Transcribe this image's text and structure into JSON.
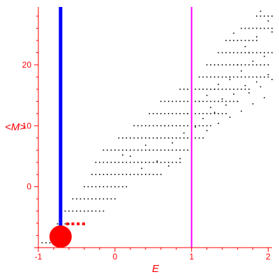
{
  "chart_data": {
    "type": "scatter",
    "title": "",
    "xlabel": "E",
    "ylabel": "<M>",
    "xlim": [
      -1,
      2.05
    ],
    "ylim": [
      -10,
      29.5
    ],
    "xticks": [
      "-1",
      "0",
      "1",
      "2"
    ],
    "yticks": [
      "0",
      "10",
      "20"
    ],
    "grid": false,
    "colors": {
      "axes": "#ff0000",
      "points": "#000000",
      "highlight": "#ff0000",
      "line_left": "#0000ff",
      "line_right": "#ff00ff"
    },
    "vertical_lines": [
      {
        "x": -0.71,
        "color": "#0000ff"
      },
      {
        "x": 1.0,
        "color": "#ff00ff"
      }
    ],
    "highlight_points": {
      "color": "#ff0000",
      "big": {
        "x": -0.71,
        "y": -8.2
      },
      "points": [
        [
          -0.62,
          -6.1
        ],
        [
          -0.55,
          -6.1
        ],
        [
          -0.48,
          -6.1
        ],
        [
          -0.41,
          -6.1
        ]
      ]
    },
    "point_bands": [
      {
        "y": -9.2,
        "x_start": -0.95,
        "x_end": -0.72
      },
      {
        "y": -6.1,
        "x_start": -0.75,
        "x_end": -0.55
      },
      {
        "y": -4.0,
        "x_start": -0.65,
        "x_end": -0.15
      },
      {
        "y": -2.0,
        "x_start": -0.55,
        "x_end": 0.0
      },
      {
        "y": 0.0,
        "x_start": -0.4,
        "x_end": 0.15
      },
      {
        "y": 2.0,
        "x_start": -0.3,
        "x_end": 0.25
      },
      {
        "y": 2.0,
        "x_start": 0.3,
        "x_end": 0.6
      },
      {
        "y": 4.0,
        "x_start": -0.25,
        "x_end": 0.35
      },
      {
        "y": 4.0,
        "x_start": 0.35,
        "x_end": 0.85
      },
      {
        "y": 6.0,
        "x_start": -0.15,
        "x_end": 0.45
      },
      {
        "y": 6.0,
        "x_start": 0.45,
        "x_end": 0.95
      },
      {
        "y": 8.0,
        "x_start": 0.05,
        "x_end": 0.55
      },
      {
        "y": 8.0,
        "x_start": 0.55,
        "x_end": 1.15
      },
      {
        "y": 10.0,
        "x_start": 0.25,
        "x_end": 0.65
      },
      {
        "y": 10.0,
        "x_start": 0.65,
        "x_end": 1.25
      },
      {
        "y": 12.0,
        "x_start": 0.45,
        "x_end": 0.95
      },
      {
        "y": 12.0,
        "x_start": 0.95,
        "x_end": 1.45
      },
      {
        "y": 14.0,
        "x_start": 0.6,
        "x_end": 1.1
      },
      {
        "y": 14.0,
        "x_start": 1.1,
        "x_end": 1.6
      },
      {
        "y": 16.0,
        "x_start": 0.85,
        "x_end": 1.3
      },
      {
        "y": 16.0,
        "x_start": 1.3,
        "x_end": 1.75
      },
      {
        "y": 18.0,
        "x_start": 1.1,
        "x_end": 1.5
      },
      {
        "y": 18.0,
        "x_start": 1.5,
        "x_end": 2.0
      },
      {
        "y": 20.0,
        "x_start": 1.2,
        "x_end": 1.6
      },
      {
        "y": 20.0,
        "x_start": 1.6,
        "x_end": 2.0
      },
      {
        "y": 22.0,
        "x_start": 1.35,
        "x_end": 1.75
      },
      {
        "y": 22.0,
        "x_start": 1.75,
        "x_end": 2.05
      },
      {
        "y": 24.0,
        "x_start": 1.45,
        "x_end": 1.85
      },
      {
        "y": 26.0,
        "x_start": 1.65,
        "x_end": 2.05
      },
      {
        "y": 28.0,
        "x_start": 1.85,
        "x_end": 2.05
      }
    ],
    "extra_points": [
      [
        0.2,
        5.0
      ],
      [
        0.1,
        5.2
      ],
      [
        0.55,
        4.2
      ],
      [
        0.7,
        3.4
      ],
      [
        0.85,
        4.6
      ],
      [
        1.0,
        5.8
      ],
      [
        1.2,
        9.2
      ],
      [
        1.35,
        10.4
      ],
      [
        1.5,
        11.4
      ],
      [
        1.65,
        12.4
      ],
      [
        1.8,
        13.6
      ],
      [
        1.95,
        14.6
      ],
      [
        1.25,
        13.0
      ],
      [
        1.4,
        14.4
      ],
      [
        1.55,
        15.2
      ],
      [
        1.7,
        16.6
      ],
      [
        1.85,
        17.2
      ],
      [
        2.0,
        18.4
      ],
      [
        0.9,
        8.8
      ],
      [
        1.05,
        9.8
      ],
      [
        0.75,
        7.2
      ],
      [
        0.4,
        6.8
      ],
      [
        0.35,
        3.0
      ],
      [
        1.15,
        11.2
      ],
      [
        1.3,
        12.2
      ],
      [
        1.45,
        13.4
      ],
      [
        1.6,
        14.0
      ],
      [
        1.75,
        15.4
      ],
      [
        1.9,
        16.4
      ],
      [
        2.05,
        17.6
      ],
      [
        1.2,
        15.0
      ],
      [
        1.35,
        16.8
      ],
      [
        1.5,
        17.6
      ],
      [
        1.65,
        19.0
      ],
      [
        1.8,
        20.6
      ],
      [
        1.95,
        21.4
      ],
      [
        1.55,
        25.2
      ],
      [
        1.7,
        23.0
      ],
      [
        1.85,
        24.6
      ],
      [
        2.0,
        27.2
      ],
      [
        2.05,
        25.4
      ],
      [
        1.9,
        28.8
      ]
    ]
  }
}
